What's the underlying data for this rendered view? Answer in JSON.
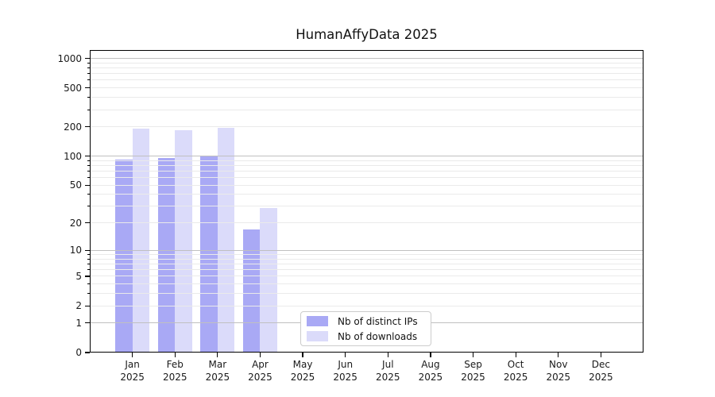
{
  "chart_data": {
    "type": "bar",
    "title": "HumanAffyData 2025",
    "categories": [
      "Jan 2025",
      "Feb 2025",
      "Mar 2025",
      "Apr 2025",
      "May 2025",
      "Jun 2025",
      "Jul 2025",
      "Aug 2025",
      "Sep 2025",
      "Oct 2025",
      "Nov 2025",
      "Dec 2025"
    ],
    "series": [
      {
        "name": "Nb of distinct IPs",
        "color": "#a9a9f5",
        "values": [
          92,
          95,
          100,
          17,
          0,
          0,
          0,
          0,
          0,
          0,
          0,
          0
        ]
      },
      {
        "name": "Nb of downloads",
        "color": "#dbdbfa",
        "values": [
          190,
          183,
          195,
          29,
          0,
          0,
          0,
          0,
          0,
          0,
          0,
          0
        ]
      }
    ],
    "y_scale": "log1p",
    "y_ticks": [
      1000,
      500,
      200,
      100,
      50,
      20,
      10,
      5,
      2,
      1,
      0
    ],
    "ylim": [
      0,
      1220
    ],
    "xlabel": "",
    "ylabel": "",
    "grid": true,
    "grid_above_bars": true,
    "legend_position": "lower center-right"
  },
  "colors": {
    "series_distinct_ips": "#a9a9f5",
    "series_downloads": "#dbdbfa",
    "major_grid": "#c0c0c0",
    "minor_grid": "#eaeaea",
    "spine": "#000000",
    "background": "#ffffff",
    "legend_border": "#cccccc",
    "text": "#1a1a1a"
  }
}
